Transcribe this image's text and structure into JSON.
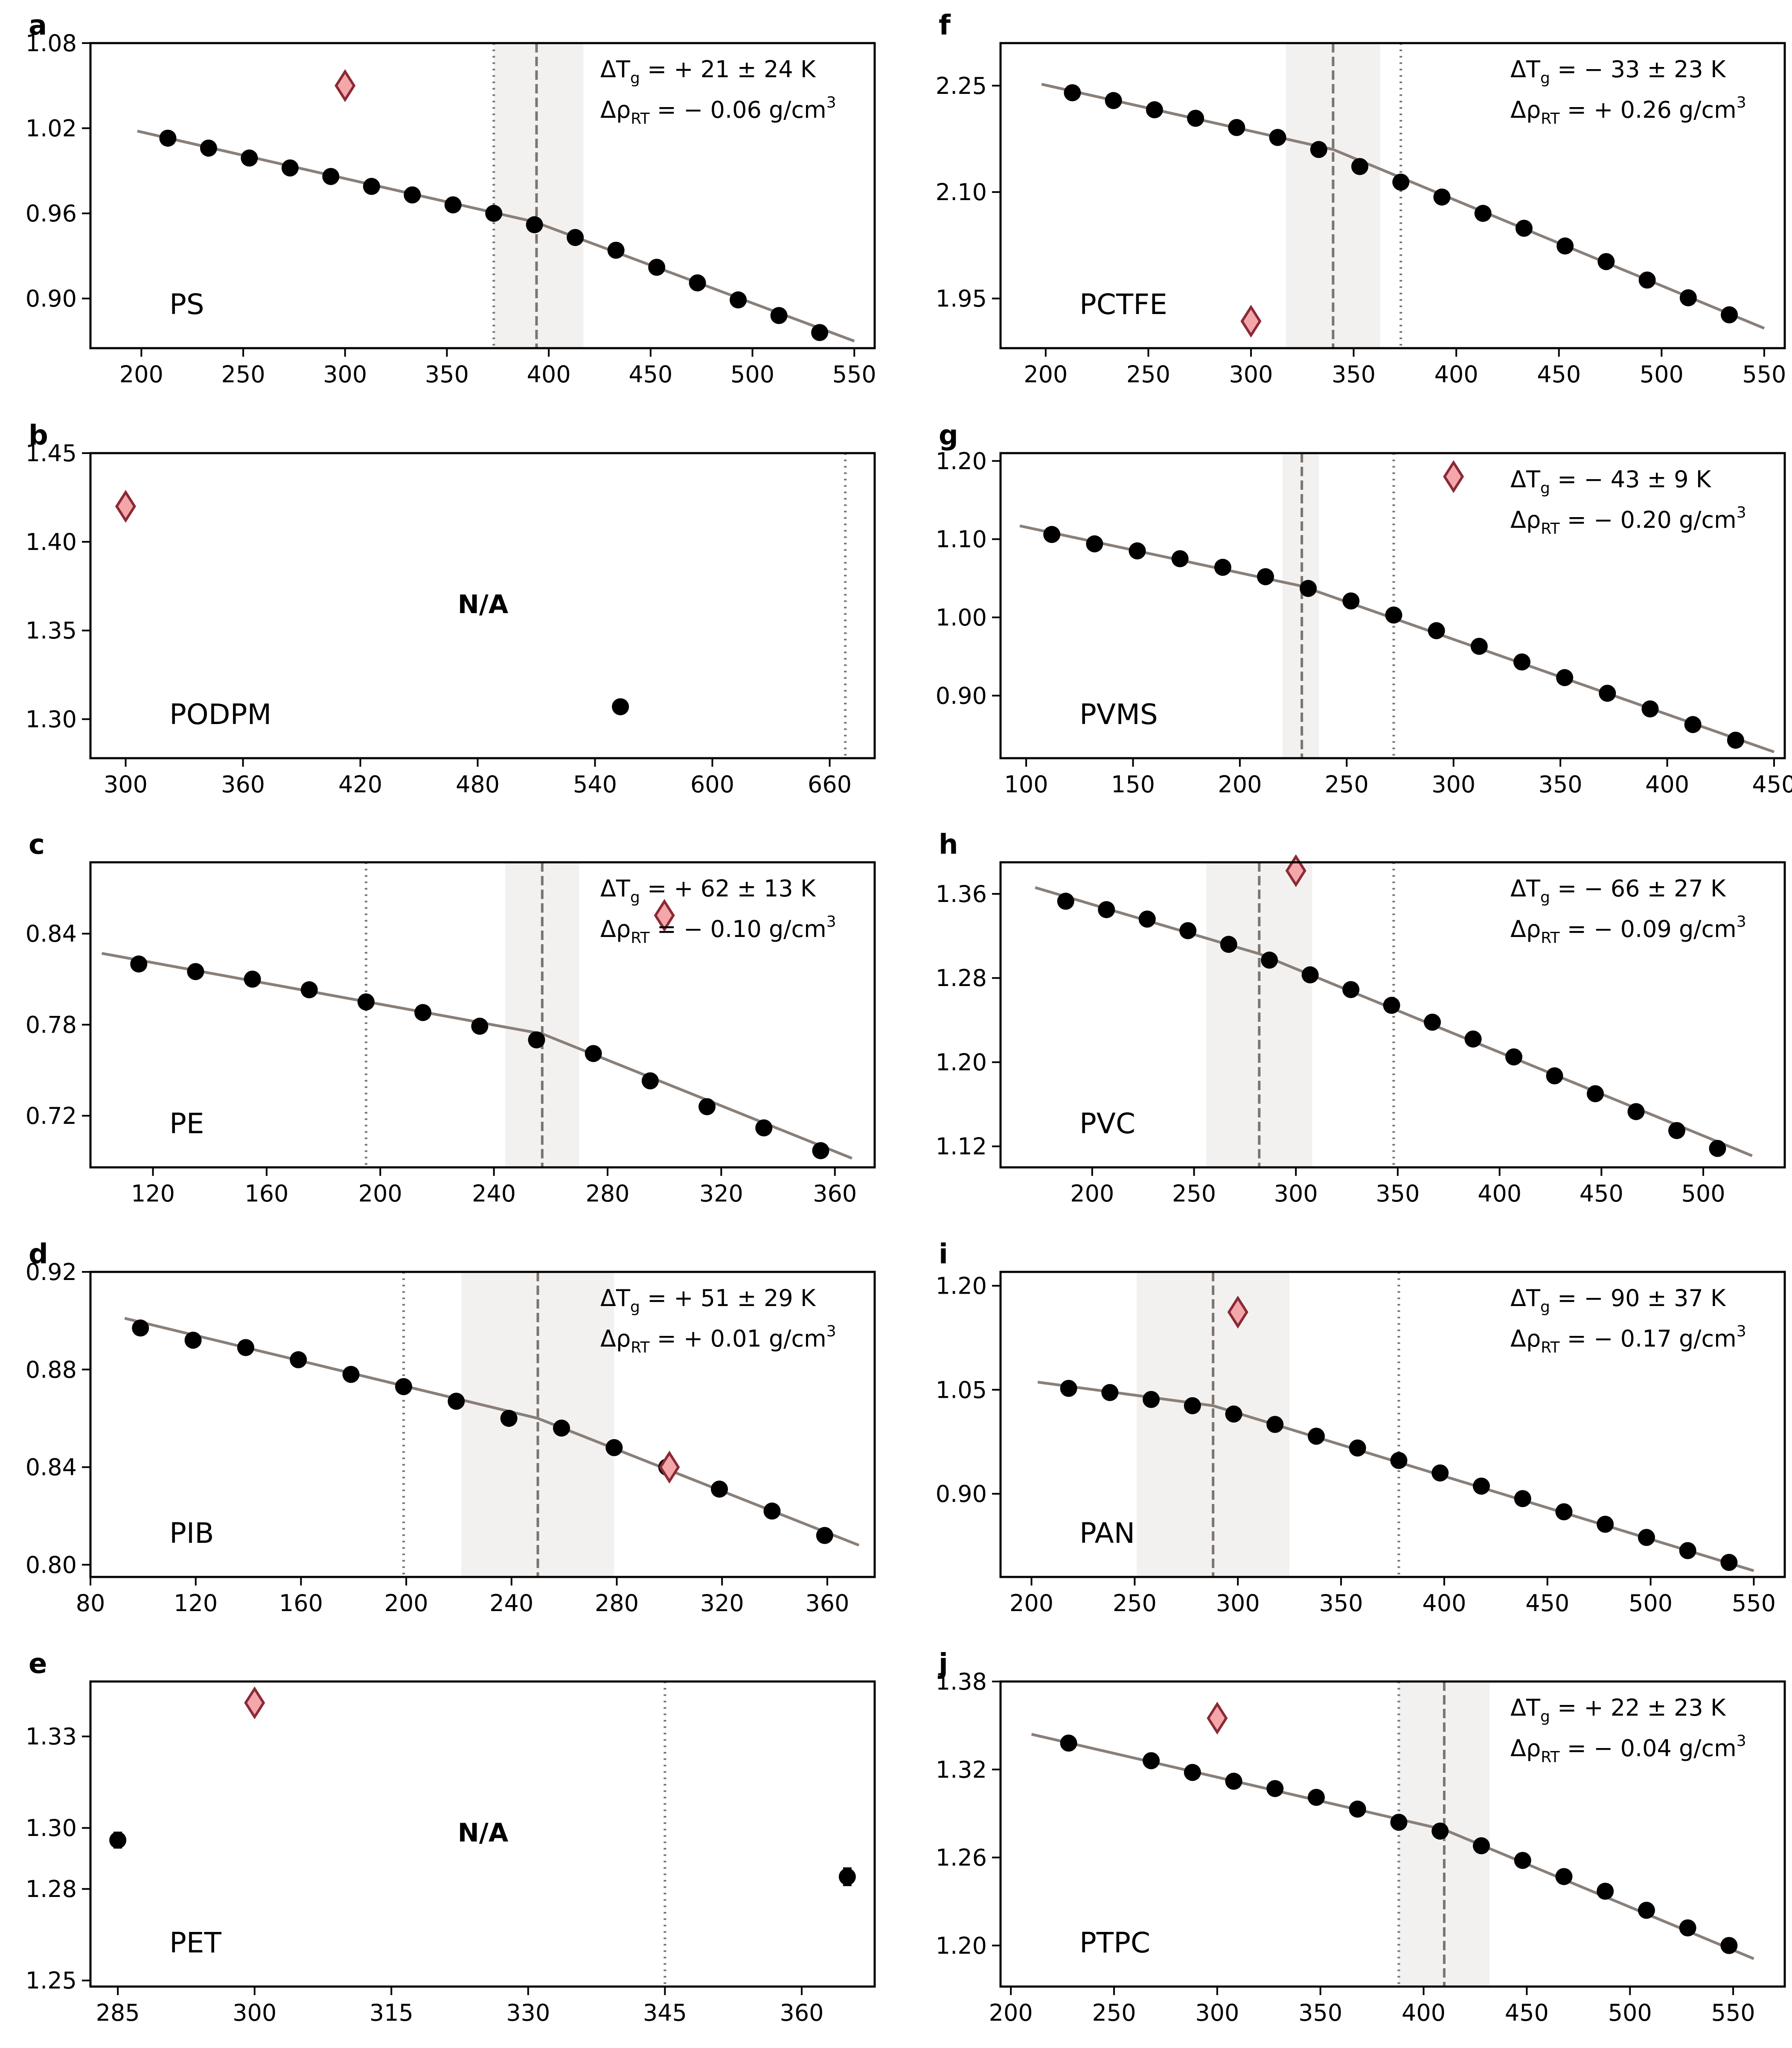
{
  "figure": {
    "colors": {
      "fit_line": "#8a7f78",
      "data_point": "#000000",
      "diamond_fill": "#f4a7ab",
      "diamond_stroke": "#8b2a35",
      "tg_band": "#f2f1f0",
      "tg_line": "#7d746e",
      "dotted_line": "#7a7a7a"
    }
  },
  "chart_data": [
    {
      "panel": "a",
      "type": "scatter",
      "polymer": "PS",
      "na": false,
      "annotation": {
        "tg": "+ 21 ± 24 K",
        "rho": "− 0.06 g/cm"
      },
      "xlim": [
        175,
        560
      ],
      "ylim": [
        0.865,
        1.08
      ],
      "xticks": [
        200,
        250,
        300,
        350,
        400,
        450,
        500,
        550
      ],
      "yticks": [
        0.9,
        0.96,
        1.02,
        1.08
      ],
      "ydec": 2,
      "points": [
        [
          213,
          1.013
        ],
        [
          233,
          1.006
        ],
        [
          253,
          0.999
        ],
        [
          273,
          0.992
        ],
        [
          293,
          0.986
        ],
        [
          313,
          0.979
        ],
        [
          333,
          0.973
        ],
        [
          353,
          0.966
        ],
        [
          373,
          0.96
        ],
        [
          393,
          0.952
        ],
        [
          413,
          0.943
        ],
        [
          433,
          0.934
        ],
        [
          453,
          0.922
        ],
        [
          473,
          0.911
        ],
        [
          493,
          0.899
        ],
        [
          513,
          0.888
        ],
        [
          533,
          0.876
        ]
      ],
      "errors": [],
      "fit": [
        [
          198,
          1.018
        ],
        [
          393,
          0.954
        ],
        [
          550,
          0.87
        ]
      ],
      "diamond": [
        300,
        1.05
      ],
      "band": [
        373,
        417
      ],
      "tg_line": 394,
      "dotted": [
        373
      ]
    },
    {
      "panel": "b",
      "type": "scatter",
      "polymer": "PODPM",
      "na": true,
      "annotation": null,
      "xlim": [
        282,
        683
      ],
      "ylim": [
        1.278,
        1.45
      ],
      "xticks": [
        300,
        360,
        420,
        480,
        540,
        600,
        660
      ],
      "yticks": [
        1.3,
        1.35,
        1.4,
        1.45
      ],
      "ydec": 2,
      "points": [
        [
          553,
          1.307
        ]
      ],
      "errors": [],
      "fit": [],
      "diamond": [
        300,
        1.42
      ],
      "band": null,
      "tg_line": null,
      "dotted": [
        668
      ]
    },
    {
      "panel": "c",
      "type": "scatter",
      "polymer": "PE",
      "na": false,
      "annotation": {
        "tg": "+ 62 ± 13 K",
        "rho": "− 0.10 g/cm"
      },
      "xlim": [
        98,
        374
      ],
      "ylim": [
        0.686,
        0.887
      ],
      "xticks": [
        120,
        160,
        200,
        240,
        280,
        320,
        360
      ],
      "yticks": [
        0.72,
        0.78,
        0.84
      ],
      "ydec": 2,
      "points": [
        [
          115,
          0.82
        ],
        [
          135,
          0.815
        ],
        [
          155,
          0.81
        ],
        [
          175,
          0.803
        ],
        [
          195,
          0.795
        ],
        [
          215,
          0.788
        ],
        [
          235,
          0.779
        ],
        [
          255,
          0.77
        ],
        [
          275,
          0.761
        ],
        [
          295,
          0.743
        ],
        [
          315,
          0.726
        ],
        [
          335,
          0.712
        ],
        [
          355,
          0.697
        ]
      ],
      "errors": [],
      "fit": [
        [
          102,
          0.827
        ],
        [
          257,
          0.774
        ],
        [
          366,
          0.692
        ]
      ],
      "diamond": [
        300,
        0.852
      ],
      "band": [
        244,
        270
      ],
      "tg_line": 257,
      "dotted": [
        195
      ]
    },
    {
      "panel": "d",
      "type": "scatter",
      "polymer": "PIB",
      "na": false,
      "annotation": {
        "tg": "+ 51 ± 29 K",
        "rho": "+ 0.01 g/cm"
      },
      "xlim": [
        80,
        378
      ],
      "ylim": [
        0.795,
        0.92
      ],
      "xticks": [
        80,
        120,
        160,
        200,
        240,
        280,
        320,
        360
      ],
      "yticks": [
        0.8,
        0.84,
        0.88,
        0.92
      ],
      "ydec": 2,
      "points": [
        [
          99,
          0.897
        ],
        [
          119,
          0.892
        ],
        [
          139,
          0.889
        ],
        [
          159,
          0.884
        ],
        [
          179,
          0.878
        ],
        [
          199,
          0.873
        ],
        [
          219,
          0.867
        ],
        [
          239,
          0.86
        ],
        [
          259,
          0.856
        ],
        [
          279,
          0.848
        ],
        [
          299,
          0.84
        ],
        [
          319,
          0.831
        ],
        [
          339,
          0.822
        ],
        [
          359,
          0.812
        ]
      ],
      "errors": [],
      "fit": [
        [
          93,
          0.901
        ],
        [
          250,
          0.86
        ],
        [
          372,
          0.808
        ]
      ],
      "diamond": [
        300,
        0.84
      ],
      "band": [
        221,
        279
      ],
      "tg_line": 250,
      "dotted": [
        199
      ]
    },
    {
      "panel": "e",
      "type": "scatter",
      "polymer": "PET",
      "na": true,
      "annotation": null,
      "xlim": [
        282,
        368
      ],
      "ylim": [
        1.248,
        1.348
      ],
      "xticks": [
        285,
        300,
        315,
        330,
        345,
        360
      ],
      "yticks": [
        1.25,
        1.28,
        1.3,
        1.33
      ],
      "ydec": 2,
      "points": [
        [
          285,
          1.296
        ],
        [
          365,
          1.284
        ]
      ],
      "errors": [
        0.0025,
        0.0028
      ],
      "fit": [],
      "diamond": [
        300,
        1.341
      ],
      "band": null,
      "tg_line": null,
      "dotted": [
        345
      ]
    },
    {
      "panel": "f",
      "type": "scatter",
      "polymer": "PCTFE",
      "na": false,
      "annotation": {
        "tg": "− 33 ± 23 K",
        "rho": "+ 0.26 g/cm"
      },
      "xlim": [
        178,
        560
      ],
      "ylim": [
        1.88,
        2.31
      ],
      "xticks": [
        200,
        250,
        300,
        350,
        400,
        450,
        500,
        550
      ],
      "yticks": [
        1.95,
        2.1,
        2.25
      ],
      "ydec": 2,
      "points": [
        [
          213,
          2.24
        ],
        [
          233,
          2.229
        ],
        [
          253,
          2.216
        ],
        [
          273,
          2.204
        ],
        [
          293,
          2.191
        ],
        [
          313,
          2.177
        ],
        [
          333,
          2.16
        ],
        [
          353,
          2.136
        ],
        [
          373,
          2.114
        ],
        [
          393,
          2.093
        ],
        [
          413,
          2.07
        ],
        [
          433,
          2.049
        ],
        [
          453,
          2.024
        ],
        [
          473,
          2.002
        ],
        [
          493,
          1.976
        ],
        [
          513,
          1.951
        ],
        [
          533,
          1.927
        ]
      ],
      "errors": [],
      "fit": [
        [
          198,
          2.252
        ],
        [
          340,
          2.16
        ],
        [
          550,
          1.908
        ]
      ],
      "diamond": [
        300,
        1.918
      ],
      "band": [
        317,
        363
      ],
      "tg_line": 340,
      "dotted": [
        373
      ]
    },
    {
      "panel": "g",
      "type": "scatter",
      "polymer": "PVMS",
      "na": false,
      "annotation": {
        "tg": "− 43 ± 9 K",
        "rho": "− 0.20 g/cm"
      },
      "xlim": [
        88,
        455
      ],
      "ylim": [
        0.82,
        1.21
      ],
      "xticks": [
        100,
        150,
        200,
        250,
        300,
        350,
        400,
        450
      ],
      "yticks": [
        0.9,
        1.0,
        1.1,
        1.2
      ],
      "ydec": 2,
      "points": [
        [
          112,
          1.106
        ],
        [
          132,
          1.094
        ],
        [
          152,
          1.085
        ],
        [
          172,
          1.075
        ],
        [
          192,
          1.064
        ],
        [
          212,
          1.052
        ],
        [
          232,
          1.037
        ],
        [
          252,
          1.021
        ],
        [
          272,
          1.003
        ],
        [
          292,
          0.983
        ],
        [
          312,
          0.963
        ],
        [
          332,
          0.943
        ],
        [
          352,
          0.923
        ],
        [
          372,
          0.903
        ],
        [
          392,
          0.883
        ],
        [
          412,
          0.863
        ],
        [
          432,
          0.843
        ]
      ],
      "errors": [],
      "fit": [
        [
          97,
          1.117
        ],
        [
          229,
          1.04
        ],
        [
          450,
          0.828
        ]
      ],
      "diamond": [
        300,
        1.18
      ],
      "band": [
        220,
        237
      ],
      "tg_line": 229,
      "dotted": [
        272
      ]
    },
    {
      "panel": "h",
      "type": "scatter",
      "polymer": "PVC",
      "na": false,
      "annotation": {
        "tg": "− 66 ± 27 K",
        "rho": "− 0.09 g/cm"
      },
      "xlim": [
        155,
        540
      ],
      "ylim": [
        1.1,
        1.39
      ],
      "xticks": [
        200,
        250,
        300,
        350,
        400,
        450,
        500
      ],
      "yticks": [
        1.12,
        1.2,
        1.28,
        1.36
      ],
      "ydec": 2,
      "points": [
        [
          187,
          1.353
        ],
        [
          207,
          1.345
        ],
        [
          227,
          1.336
        ],
        [
          247,
          1.325
        ],
        [
          267,
          1.312
        ],
        [
          287,
          1.297
        ],
        [
          307,
          1.283
        ],
        [
          327,
          1.269
        ],
        [
          347,
          1.254
        ],
        [
          367,
          1.238
        ],
        [
          387,
          1.222
        ],
        [
          407,
          1.205
        ],
        [
          427,
          1.187
        ],
        [
          447,
          1.17
        ],
        [
          467,
          1.153
        ],
        [
          487,
          1.135
        ],
        [
          507,
          1.118
        ]
      ],
      "errors": [],
      "fit": [
        [
          172,
          1.366
        ],
        [
          282,
          1.303
        ],
        [
          524,
          1.111
        ]
      ],
      "diamond": [
        300,
        1.382
      ],
      "band": [
        256,
        308
      ],
      "tg_line": 282,
      "dotted": [
        348
      ]
    },
    {
      "panel": "i",
      "type": "scatter",
      "polymer": "PAN",
      "na": false,
      "annotation": {
        "tg": "− 90 ± 37 K",
        "rho": "− 0.17 g/cm"
      },
      "xlim": [
        185,
        565
      ],
      "ylim": [
        0.78,
        1.22
      ],
      "xticks": [
        200,
        250,
        300,
        350,
        400,
        450,
        500,
        550
      ],
      "yticks": [
        0.9,
        1.05,
        1.2
      ],
      "ydec": 2,
      "points": [
        [
          218,
          1.052
        ],
        [
          238,
          1.046
        ],
        [
          258,
          1.036
        ],
        [
          278,
          1.027
        ],
        [
          298,
          1.015
        ],
        [
          318,
          1.0
        ],
        [
          338,
          0.983
        ],
        [
          358,
          0.966
        ],
        [
          378,
          0.948
        ],
        [
          398,
          0.93
        ],
        [
          418,
          0.911
        ],
        [
          438,
          0.893
        ],
        [
          458,
          0.874
        ],
        [
          478,
          0.856
        ],
        [
          498,
          0.837
        ],
        [
          518,
          0.818
        ],
        [
          538,
          0.801
        ]
      ],
      "errors": [],
      "fit": [
        [
          203,
          1.061
        ],
        [
          288,
          1.027
        ],
        [
          550,
          0.789
        ]
      ],
      "diamond": [
        300,
        1.162
      ],
      "band": [
        251,
        325
      ],
      "tg_line": 288,
      "dotted": [
        378
      ]
    },
    {
      "panel": "j",
      "type": "scatter",
      "polymer": "PTPC",
      "na": false,
      "annotation": {
        "tg": "+ 22 ± 23 K",
        "rho": "− 0.04 g/cm"
      },
      "xlim": [
        195,
        575
      ],
      "ylim": [
        1.172,
        1.38
      ],
      "xticks": [
        200,
        250,
        300,
        350,
        400,
        450,
        500,
        550
      ],
      "yticks": [
        1.2,
        1.26,
        1.32,
        1.38
      ],
      "ydec": 2,
      "points": [
        [
          228,
          1.338
        ],
        [
          268,
          1.326
        ],
        [
          288,
          1.318
        ],
        [
          308,
          1.312
        ],
        [
          328,
          1.307
        ],
        [
          348,
          1.301
        ],
        [
          368,
          1.293
        ],
        [
          388,
          1.284
        ],
        [
          408,
          1.278
        ],
        [
          428,
          1.268
        ],
        [
          448,
          1.258
        ],
        [
          468,
          1.247
        ],
        [
          488,
          1.237
        ],
        [
          508,
          1.224
        ],
        [
          528,
          1.212
        ],
        [
          548,
          1.2
        ]
      ],
      "errors": [],
      "fit": [
        [
          210,
          1.344
        ],
        [
          410,
          1.279
        ],
        [
          560,
          1.191
        ]
      ],
      "diamond": [
        300,
        1.355
      ],
      "band": [
        388,
        432
      ],
      "tg_line": 410,
      "dotted": [
        388
      ]
    }
  ],
  "labels": {
    "na": "N/A",
    "tg_prefix": "ΔT",
    "tg_sub": "g",
    "rho_prefix": "Δρ",
    "rho_sub": "RT",
    "rho_sup": "3"
  }
}
